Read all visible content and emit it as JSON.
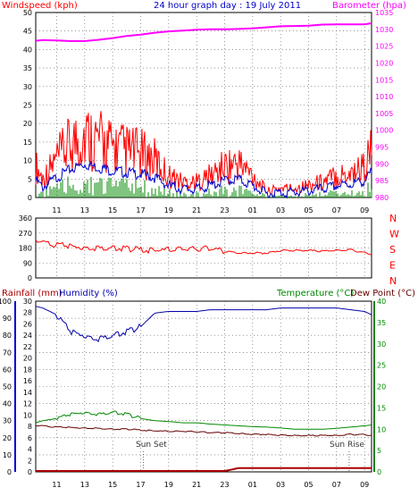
{
  "header": {
    "left_label": "Windspeed (kph)",
    "center_label": "24 hour graph day : 19 July 2011",
    "right_label": "Barometer (hpa)"
  },
  "bottom_header": {
    "rainfall_label": "Rainfall (mm)",
    "humidity_label": "Humidity (%)",
    "temperature_label": "Temperature (°C)",
    "dewpoint_label": "Dew Point (°C)"
  },
  "annotations": {
    "sun_set": "Sun Set",
    "sun_rise": "Sun Rise"
  },
  "colors": {
    "wind_gust": "#ff0000",
    "wind_avg": "#0000cc",
    "wind_min": "#008800",
    "barometer": "#ff00ff",
    "direction": "#ff0000",
    "humidity": "#0000aa",
    "temperature": "#008800",
    "dewpoint": "#660000",
    "rainfall": "#aa0000"
  },
  "chart_data": [
    {
      "type": "line",
      "title": "24 hour graph day : 19 July 2011",
      "ylabel": "Windspeed (kph)",
      "y2label": "Barometer (hpa)",
      "ylim": [
        0,
        50
      ],
      "y2lim": [
        980,
        1035
      ],
      "yticks": [
        "0",
        "5",
        "10",
        "15",
        "20",
        "25",
        "30",
        "35",
        "40",
        "45",
        "50"
      ],
      "y2ticks": [
        "980",
        "985",
        "990",
        "995",
        "1000",
        "1005",
        "1010",
        "1015",
        "1020",
        "1025",
        "1030",
        "1035"
      ],
      "x_hours": [
        9.5,
        10,
        11,
        12,
        13,
        14,
        15,
        16,
        17,
        18,
        19,
        20,
        21,
        22,
        23,
        24,
        25,
        26,
        27,
        28,
        29,
        30,
        31,
        32,
        33,
        33.5
      ],
      "x_ticks": [
        "11",
        "13",
        "15",
        "17",
        "19",
        "21",
        "23",
        "01",
        "03",
        "05",
        "07",
        "09"
      ],
      "series": [
        {
          "name": "Windspeed (kph)",
          "values": [
            10,
            6,
            12,
            17,
            20,
            18,
            16,
            15,
            14,
            12,
            7,
            5,
            5,
            7,
            10,
            11,
            7,
            2,
            3,
            3,
            4,
            5,
            7,
            8,
            10,
            15
          ]
        },
        {
          "name": "Barometer (hpa)",
          "values": [
            1026.6,
            1026.8,
            1026.7,
            1026.5,
            1026.5,
            1026.9,
            1027.4,
            1028.0,
            1028.4,
            1029.0,
            1029.4,
            1029.6,
            1029.9,
            1030.0,
            1030.0,
            1030.1,
            1030.3,
            1030.6,
            1030.9,
            1031.0,
            1031.1,
            1031.4,
            1031.5,
            1031.5,
            1031.5,
            1031.8
          ]
        }
      ]
    },
    {
      "type": "line",
      "ylabel": "",
      "ylim": [
        0,
        360
      ],
      "yticks": [
        "0",
        "90",
        "180",
        "270",
        "360"
      ],
      "right_labels": [
        "N",
        "W",
        "S",
        "E",
        "N"
      ],
      "x_hours": [
        9.5,
        10,
        11,
        12,
        13,
        14,
        15,
        16,
        17,
        18,
        19,
        20,
        21,
        22,
        23,
        24,
        25,
        26,
        27,
        28,
        29,
        30,
        31,
        32,
        33,
        33.5
      ],
      "x_ticks": [
        "11",
        "13",
        "15",
        "17",
        "19",
        "21",
        "23",
        "01",
        "03",
        "05",
        "07",
        "09"
      ],
      "series": [
        {
          "name": "Wind Direction",
          "values": [
            225,
            215,
            200,
            190,
            185,
            180,
            180,
            175,
            170,
            165,
            170,
            175,
            175,
            180,
            160,
            150,
            150,
            150,
            165,
            165,
            165,
            160,
            165,
            170,
            150,
            145
          ]
        }
      ]
    },
    {
      "type": "line",
      "ylim": [
        0,
        100
      ],
      "yticks": [
        "0",
        "10",
        "20",
        "30",
        "40",
        "50",
        "60",
        "70",
        "80",
        "90",
        "100"
      ],
      "y_mid_ticks": [
        "0",
        "2",
        "4",
        "6",
        "8",
        "10",
        "12",
        "14",
        "16",
        "18",
        "20",
        "22",
        "24",
        "26",
        "28",
        "30"
      ],
      "y2lim": [
        0,
        40
      ],
      "y2ticks": [
        "0",
        "5",
        "10",
        "15",
        "20",
        "25",
        "30",
        "35",
        "40"
      ],
      "x_hours": [
        9.5,
        10,
        11,
        12,
        13,
        14,
        15,
        16,
        17,
        18,
        19,
        20,
        21,
        22,
        23,
        24,
        25,
        26,
        27,
        28,
        29,
        30,
        31,
        32,
        33,
        33.5
      ],
      "x_ticks": [
        "11",
        "13",
        "15",
        "17",
        "19",
        "21",
        "23",
        "01",
        "03",
        "05",
        "07",
        "09"
      ],
      "series": [
        {
          "name": "Humidity (%)",
          "values": [
            97,
            96,
            92,
            82,
            80,
            78,
            80,
            82,
            85,
            93,
            94,
            94,
            94,
            95,
            95,
            95,
            95,
            95,
            96,
            96,
            96,
            96,
            96,
            95,
            94,
            92
          ]
        },
        {
          "name": "Temperature (°C)",
          "values": [
            11.5,
            12,
            12.5,
            13.5,
            14,
            13.5,
            14,
            13.5,
            12.5,
            12,
            11.8,
            11.5,
            11.5,
            11.2,
            11,
            10.8,
            10.6,
            10.5,
            10.3,
            10,
            10,
            10,
            10.2,
            10.5,
            10.8,
            11
          ]
        },
        {
          "name": "Dew Point (°C)",
          "values": [
            10.8,
            10.8,
            10.5,
            10.4,
            10.3,
            10.2,
            10,
            10,
            9.8,
            9.6,
            9.5,
            9.5,
            9.4,
            9.2,
            9.2,
            9,
            8.8,
            8.8,
            8.6,
            8.5,
            8.5,
            8.5,
            8.5,
            8.8,
            8.7,
            8.6
          ]
        },
        {
          "name": "Rainfall (mm)",
          "values": [
            0,
            0,
            0,
            0,
            0,
            0,
            0,
            0,
            0,
            0,
            0,
            0,
            0,
            0,
            0,
            0.4,
            0.4,
            0.4,
            0.4,
            0.4,
            0.4,
            0.4,
            0.4,
            0.4,
            0.4,
            0.4
          ]
        }
      ]
    }
  ]
}
